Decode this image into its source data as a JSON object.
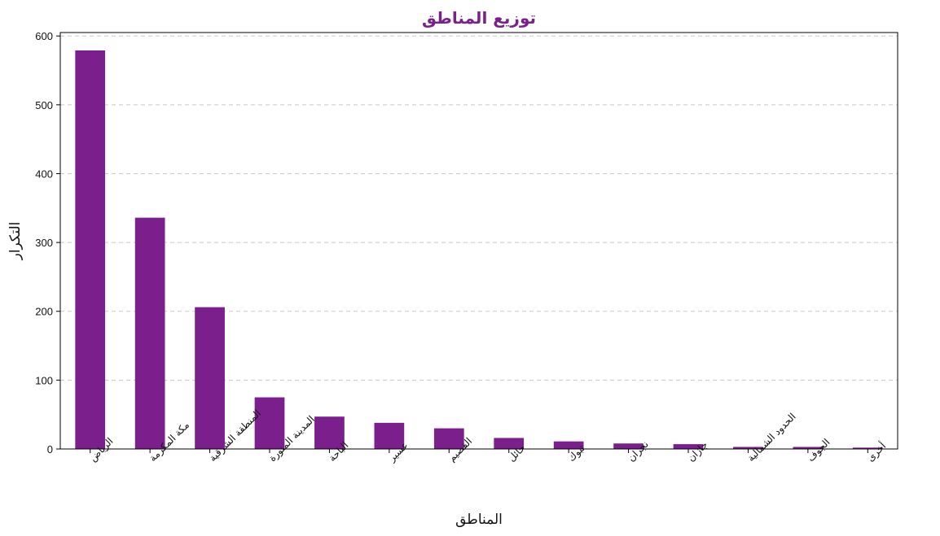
{
  "chart_data": {
    "type": "bar",
    "title": "توزيع المناطق",
    "xlabel": "المناطق",
    "ylabel": "التكرار",
    "categories": [
      "الرياض",
      "مكة المكرمة",
      "المنطقة الشرقية",
      "المدينة المنورة",
      "الباحة",
      "عسير",
      "القصيم",
      "حائل",
      "تبوك",
      "نجران",
      "جازان",
      "الحدود الشمالية",
      "الجوف",
      "أخرى"
    ],
    "values": [
      579,
      336,
      206,
      75,
      47,
      38,
      30,
      16,
      11,
      8,
      7,
      3,
      3,
      2
    ],
    "ylim": [
      0,
      605
    ],
    "yticks": [
      0,
      100,
      200,
      300,
      400,
      500,
      600
    ],
    "grid": "y-dashed",
    "colors": {
      "bar": "#7B1F8C",
      "title": "#7B1F8C",
      "grid": "#c8c8c8",
      "axis": "#000000"
    }
  }
}
